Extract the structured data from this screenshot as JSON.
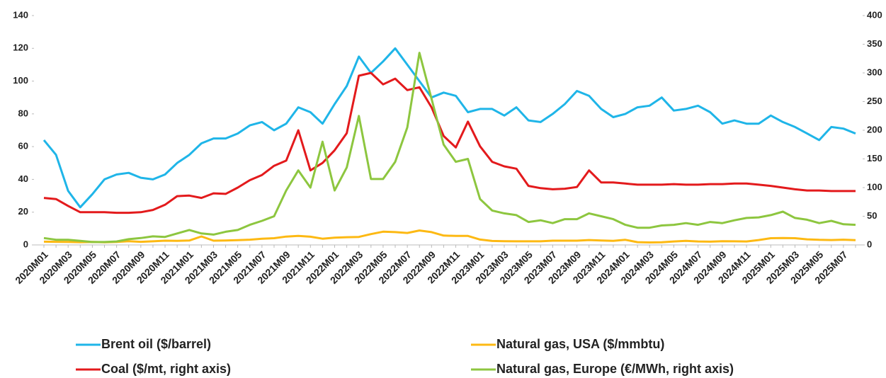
{
  "chart_data": {
    "type": "line",
    "categories": [
      "2020M01",
      null,
      "2020M03",
      null,
      "2020M05",
      null,
      "2020M07",
      null,
      "2020M09",
      null,
      "2020M11",
      null,
      "2021M01",
      null,
      "2021M03",
      null,
      "2021M05",
      null,
      "2021M07",
      null,
      "2021M09",
      null,
      "2021M11",
      null,
      "2022M01",
      null,
      "2022M03",
      null,
      "2022M05",
      null,
      "2022M07",
      null,
      "2022M09",
      null,
      "2022M11",
      null,
      "2023M01",
      null,
      "2023M03",
      null,
      "2023M05",
      null,
      "2023M07",
      null,
      "2023M09",
      null,
      "2023M11",
      null,
      "2024M01",
      null,
      "2024M03",
      null,
      "2024M05",
      null,
      "2024M07",
      null,
      "2024M09",
      null,
      "2024M11",
      null,
      "2025M01",
      null,
      "2025M03",
      null,
      "2025M05",
      null,
      "2025M07",
      null
    ],
    "ylim": [
      0,
      140
    ],
    "yticks": [
      0,
      20,
      40,
      60,
      80,
      100,
      120,
      140
    ],
    "y2lim": [
      0,
      400
    ],
    "y2ticks": [
      0,
      50,
      100,
      150,
      200,
      250,
      300,
      350,
      400
    ],
    "series": [
      {
        "name": "Brent oil ($/barrel)",
        "color": "#1fb5e8",
        "values": [
          64,
          55,
          33,
          23,
          31,
          40,
          43,
          44,
          41,
          40,
          43,
          50,
          55,
          62,
          65,
          65,
          68,
          73,
          75,
          70,
          74,
          84,
          81,
          74,
          86,
          97,
          115,
          105,
          112,
          120,
          110,
          100,
          90,
          93,
          91,
          81,
          83,
          83,
          79,
          84,
          76,
          75,
          80,
          86,
          94,
          91,
          83,
          78,
          80,
          84,
          85,
          90,
          82,
          83,
          85,
          81,
          74,
          76,
          74,
          74,
          79,
          75,
          72,
          68,
          64,
          72,
          71,
          68
        ]
      },
      {
        "name": "Natural gas, USA ($/mmbtu)",
        "color": "#fdb913",
        "values": [
          2.0,
          1.9,
          1.8,
          1.7,
          1.8,
          1.6,
          1.8,
          2.3,
          1.9,
          2.2,
          2.6,
          2.5,
          2.7,
          5.2,
          2.6,
          2.7,
          2.9,
          3.2,
          3.8,
          4.1,
          5.1,
          5.5,
          5.0,
          3.8,
          4.4,
          4.7,
          4.9,
          6.6,
          8.1,
          7.8,
          7.3,
          8.8,
          7.8,
          5.7,
          5.5,
          5.5,
          3.3,
          2.4,
          2.3,
          2.2,
          2.2,
          2.2,
          2.6,
          2.6,
          2.6,
          3.0,
          2.7,
          2.5,
          3.1,
          1.7,
          1.5,
          1.6,
          2.1,
          2.5,
          2.1,
          2.0,
          2.3,
          2.2,
          2.1,
          3.0,
          4.1,
          4.2,
          4.1,
          3.4,
          3.1,
          3.0,
          3.2,
          2.9
        ]
      },
      {
        "name": "Coal ($/mt, right axis)",
        "color": "#e31a1c",
        "axis": "y2",
        "values": [
          82,
          80,
          68,
          57,
          57,
          57,
          56,
          56,
          57,
          61,
          70,
          85,
          86,
          82,
          90,
          89,
          100,
          113,
          122,
          138,
          147,
          200,
          130,
          143,
          165,
          195,
          295,
          300,
          280,
          290,
          270,
          275,
          240,
          190,
          170,
          215,
          172,
          145,
          137,
          133,
          103,
          99,
          97,
          98,
          101,
          130,
          109,
          109,
          107,
          105,
          105,
          105,
          106,
          105,
          105,
          106,
          106,
          107,
          107,
          105,
          103,
          100,
          97,
          95,
          95,
          94,
          94,
          94
        ]
      },
      {
        "name": "Natural gas, Europe (€/MWh, right axis)",
        "color": "#8dc63f",
        "axis": "y2",
        "values": [
          12,
          9,
          9,
          7,
          5,
          5,
          6,
          10,
          12,
          15,
          14,
          20,
          26,
          20,
          18,
          23,
          26,
          35,
          42,
          50,
          95,
          130,
          100,
          180,
          95,
          135,
          225,
          115,
          115,
          145,
          205,
          335,
          255,
          175,
          145,
          150,
          80,
          60,
          55,
          52,
          40,
          43,
          38,
          45,
          45,
          55,
          50,
          45,
          35,
          30,
          30,
          34,
          35,
          38,
          35,
          40,
          38,
          43,
          47,
          48,
          52,
          58,
          47,
          44,
          38,
          42,
          36,
          35
        ]
      }
    ]
  }
}
